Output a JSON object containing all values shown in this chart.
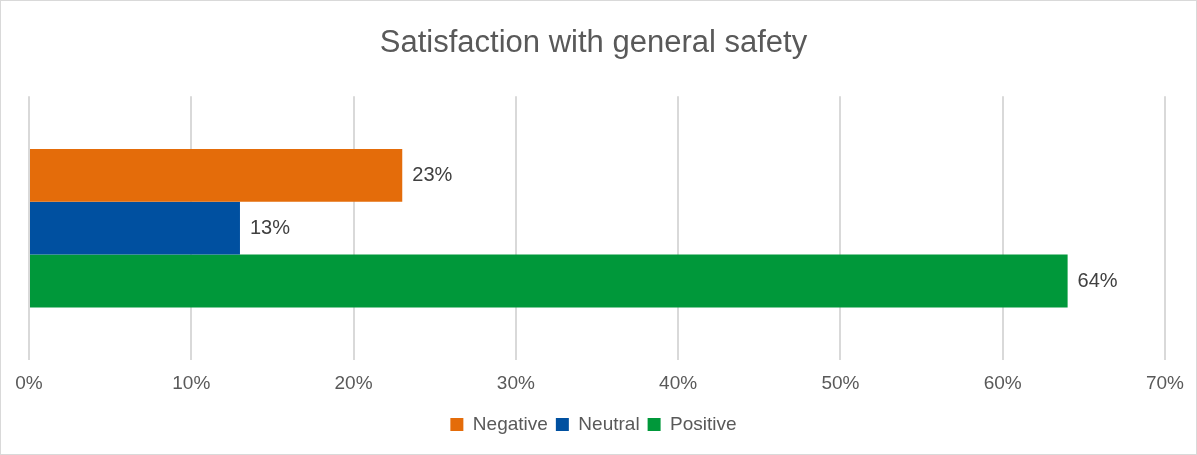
{
  "chart_data": {
    "type": "bar",
    "orientation": "horizontal",
    "title": "Satisfaction with general safety",
    "categories": [
      null
    ],
    "series": [
      {
        "name": "Negative",
        "color": "#e46c0a",
        "values": [
          23
        ],
        "value_labels": [
          "23%"
        ]
      },
      {
        "name": "Neutral",
        "color": "#0050a0",
        "values": [
          13
        ],
        "value_labels": [
          "13%"
        ]
      },
      {
        "name": "Positive",
        "color": "#00983a",
        "values": [
          64
        ],
        "value_labels": [
          "64%"
        ]
      }
    ],
    "xlim": [
      0,
      70
    ],
    "xticks": [
      {
        "value": 0,
        "label": "0%"
      },
      {
        "value": 10,
        "label": "10%"
      },
      {
        "value": 20,
        "label": "20%"
      },
      {
        "value": 30,
        "label": "30%"
      },
      {
        "value": 40,
        "label": "40%"
      },
      {
        "value": 50,
        "label": "50%"
      },
      {
        "value": 60,
        "label": "60%"
      },
      {
        "value": 70,
        "label": "70%"
      }
    ],
    "grid": "x",
    "legend": "bottom"
  }
}
